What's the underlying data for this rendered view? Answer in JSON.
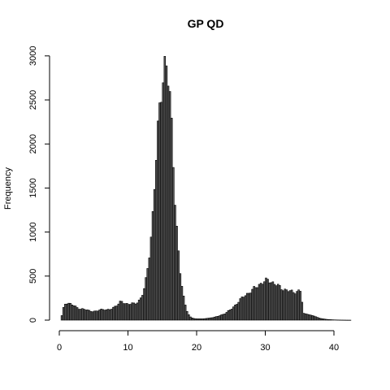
{
  "chart_data": {
    "type": "bar",
    "title": "GP QD",
    "xlabel": "",
    "ylabel": "Frequency",
    "xlim": [
      0,
      42.5
    ],
    "ylim": [
      0,
      3000
    ],
    "bin_width": 0.25,
    "x_ticks": [
      0,
      10,
      20,
      30,
      40
    ],
    "y_ticks": [
      0,
      500,
      1000,
      1500,
      2000,
      2500,
      3000
    ],
    "x_tick_labels": [
      "0",
      "10",
      "20",
      "30",
      "40"
    ],
    "y_tick_labels": [
      "0",
      "500",
      "1000",
      "1500",
      "2000",
      "2500",
      "3000"
    ],
    "grid": false,
    "legend": "none",
    "control_points": [
      [
        0.25,
        0
      ],
      [
        0.5,
        100
      ],
      [
        0.75,
        170
      ],
      [
        1.0,
        200
      ],
      [
        1.5,
        190
      ],
      [
        2.0,
        170
      ],
      [
        2.5,
        145
      ],
      [
        3.0,
        130
      ],
      [
        3.5,
        125
      ],
      [
        4.0,
        115
      ],
      [
        4.5,
        105
      ],
      [
        5.0,
        100
      ],
      [
        5.5,
        100
      ],
      [
        6.0,
        120
      ],
      [
        6.5,
        125
      ],
      [
        7.0,
        115
      ],
      [
        7.5,
        120
      ],
      [
        8.0,
        150
      ],
      [
        8.5,
        180
      ],
      [
        9.0,
        210
      ],
      [
        9.5,
        190
      ],
      [
        10.0,
        185
      ],
      [
        10.5,
        190
      ],
      [
        11.0,
        180
      ],
      [
        11.5,
        210
      ],
      [
        12.0,
        270
      ],
      [
        12.5,
        380
      ],
      [
        13.0,
        650
      ],
      [
        13.5,
        1050
      ],
      [
        14.0,
        1700
      ],
      [
        14.5,
        2250
      ],
      [
        15.0,
        2750
      ],
      [
        15.5,
        2980
      ],
      [
        16.0,
        2650
      ],
      [
        16.5,
        2000
      ],
      [
        17.0,
        1200
      ],
      [
        17.5,
        620
      ],
      [
        18.0,
        300
      ],
      [
        18.5,
        130
      ],
      [
        19.0,
        40
      ],
      [
        19.5,
        20
      ],
      [
        20.0,
        15
      ],
      [
        21.0,
        15
      ],
      [
        22.0,
        25
      ],
      [
        23.0,
        40
      ],
      [
        24.0,
        70
      ],
      [
        25.0,
        120
      ],
      [
        26.0,
        200
      ],
      [
        27.0,
        280
      ],
      [
        28.0,
        330
      ],
      [
        29.0,
        400
      ],
      [
        30.0,
        440
      ],
      [
        30.5,
        460
      ],
      [
        31.0,
        430
      ],
      [
        32.0,
        380
      ],
      [
        33.0,
        340
      ],
      [
        34.0,
        320
      ],
      [
        35.0,
        330
      ],
      [
        35.25,
        330
      ],
      [
        35.5,
        80
      ],
      [
        36.0,
        70
      ],
      [
        37.0,
        50
      ],
      [
        38.0,
        20
      ],
      [
        39.0,
        8
      ],
      [
        40.0,
        3
      ],
      [
        41.0,
        1
      ],
      [
        42.0,
        0
      ]
    ]
  }
}
